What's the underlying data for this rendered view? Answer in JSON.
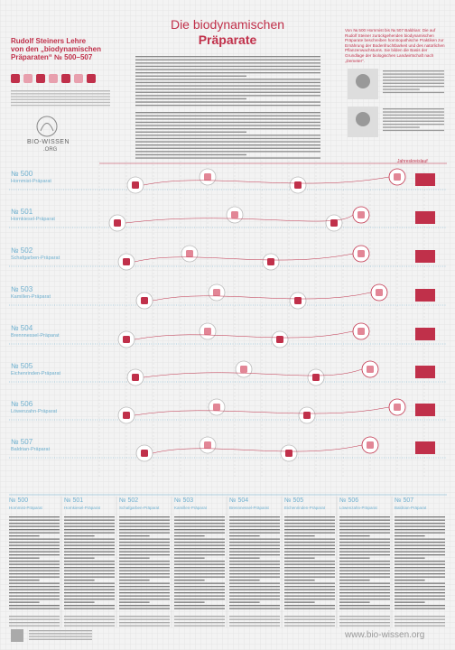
{
  "header": {
    "title_line1": "Die biodynamischen",
    "title_line2": "Präparate",
    "subtitle_lines": [
      "Rudolf Steiners Lehre",
      "von den „biodynamischen",
      "Präparaten“ № 500–507"
    ],
    "intro_box": "Von № 500 Hornmist bis № 507 Baldrian: Die auf Rudolf Steiner zurückgehenden biodynamischen Präparate beschreiben homöopathische Praktiken zur Ernährung der Bodenfruchtbarkeit und des natürlichen Pflanzenwachstums. Sie bilden die Basis der Grundlage der biologischen Landwirtschaft nach „Demeter“."
  },
  "logo": {
    "line1": "BIO-WISSEN",
    "line2": ".ORG"
  },
  "cycle_label": "Jahreskreislauf",
  "preparations": [
    {
      "number": "№ 500",
      "name": "Hornmist-Präparat"
    },
    {
      "number": "№ 501",
      "name": "Hornkiesel-Präparat"
    },
    {
      "number": "№ 502",
      "name": "Schafgarben-Präparat"
    },
    {
      "number": "№ 503",
      "name": "Kamillen-Präparat"
    },
    {
      "number": "№ 504",
      "name": "Brennnessel-Präparat"
    },
    {
      "number": "№ 505",
      "name": "Eichenrinden-Präparat"
    },
    {
      "number": "№ 506",
      "name": "Löwenzahn-Präparat"
    },
    {
      "number": "№ 507",
      "name": "Baldrian-Präparat"
    }
  ],
  "footer": {
    "url": "www.bio-wissen.org"
  }
}
